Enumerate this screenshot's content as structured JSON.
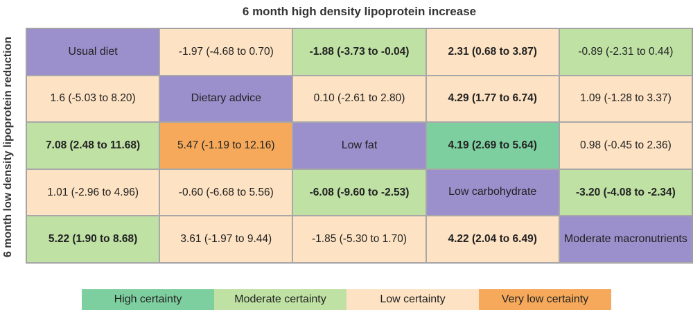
{
  "colors": {
    "high": "#7ecf9f",
    "moderate": "#bfe1a4",
    "low": "#fde2c3",
    "very_low": "#f6a95a",
    "diet": "#9b8fcc"
  },
  "chart_data": {
    "type": "table",
    "title": "6 month high density lipoprotein increase",
    "ylabel": "6 month low density lipoprotein reduction",
    "diets": [
      "Usual diet",
      "Dietary advice",
      "Low fat",
      "Low carbohydrate",
      "Moderate macronutrients"
    ],
    "rows": [
      [
        {
          "text": "Usual diet",
          "kind": "diet"
        },
        {
          "text": "-1.97 (-4.68 to 0.70)",
          "certainty": "low",
          "bold": false
        },
        {
          "text": "-1.88 (-3.73 to -0.04)",
          "certainty": "moderate",
          "bold": true
        },
        {
          "text": "2.31 (0.68 to 3.87)",
          "certainty": "low",
          "bold": true
        },
        {
          "text": "-0.89 (-2.31 to 0.44)",
          "certainty": "moderate",
          "bold": false
        }
      ],
      [
        {
          "text": "1.6 (-5.03 to 8.20)",
          "certainty": "low",
          "bold": false
        },
        {
          "text": "Dietary advice",
          "kind": "diet"
        },
        {
          "text": "0.10 (-2.61 to 2.80)",
          "certainty": "low",
          "bold": false
        },
        {
          "text": "4.29 (1.77 to 6.74)",
          "certainty": "low",
          "bold": true
        },
        {
          "text": "1.09 (-1.28 to 3.37)",
          "certainty": "low",
          "bold": false
        }
      ],
      [
        {
          "text": "7.08 (2.48 to 11.68)",
          "certainty": "moderate",
          "bold": true
        },
        {
          "text": "5.47 (-1.19 to 12.16)",
          "certainty": "very_low",
          "bold": false
        },
        {
          "text": "Low fat",
          "kind": "diet"
        },
        {
          "text": "4.19 (2.69 to 5.64)",
          "certainty": "high",
          "bold": true
        },
        {
          "text": "0.98 (-0.45 to 2.36)",
          "certainty": "low",
          "bold": false
        }
      ],
      [
        {
          "text": "1.01 (-2.96 to 4.96)",
          "certainty": "low",
          "bold": false
        },
        {
          "text": "-0.60 (-6.68 to 5.56)",
          "certainty": "low",
          "bold": false
        },
        {
          "text": "-6.08 (-9.60 to -2.53)",
          "certainty": "moderate",
          "bold": true
        },
        {
          "text": "Low carbohydrate",
          "kind": "diet"
        },
        {
          "text": "-3.20 (-4.08 to -2.34)",
          "certainty": "moderate",
          "bold": true
        }
      ],
      [
        {
          "text": "5.22 (1.90 to 8.68)",
          "certainty": "moderate",
          "bold": true
        },
        {
          "text": "3.61 (-1.97 to 9.44)",
          "certainty": "low",
          "bold": false
        },
        {
          "text": "-1.85 (-5.30 to 1.70)",
          "certainty": "low",
          "bold": false
        },
        {
          "text": "4.22 (2.04 to 6.49)",
          "certainty": "low",
          "bold": true
        },
        {
          "text": "Moderate macronutrients",
          "kind": "diet"
        }
      ]
    ],
    "legend": [
      {
        "label": "High certainty",
        "key": "high"
      },
      {
        "label": "Moderate certainty",
        "key": "moderate"
      },
      {
        "label": "Low certainty",
        "key": "low"
      },
      {
        "label": "Very low certainty",
        "key": "very_low"
      }
    ]
  }
}
